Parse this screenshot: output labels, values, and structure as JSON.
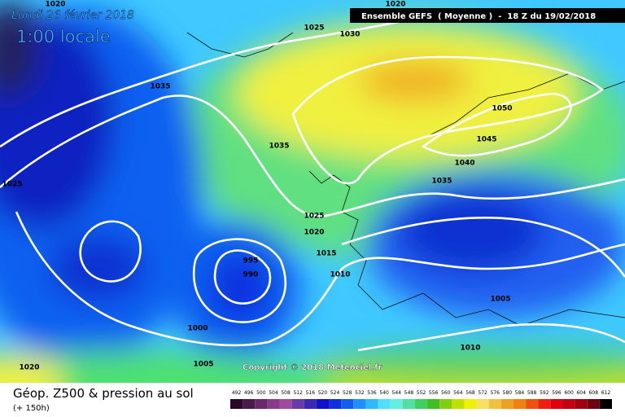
{
  "header": {
    "date": "Lundi 26 février 2018",
    "time": "1:00 locale",
    "run": "Ensemble GEFS  ( Moyenne )  -  18 Z du 19/02/2018"
  },
  "isobar_labels": [
    "1020",
    "1025",
    "1030",
    "1020",
    "1035",
    "1050",
    "1035",
    "1045",
    "1040",
    "1035",
    "1025",
    "1025",
    "1020",
    "1015",
    "995",
    "990",
    "1010",
    "1005",
    "1000",
    "1010",
    "1005",
    "1020"
  ],
  "copyright": "Copyright © 2018 Meteociel.fr",
  "footer": {
    "title": "Géop. Z500 & pression au sol",
    "lead": "(+ 150h)"
  },
  "legend": {
    "values": [
      492,
      496,
      500,
      504,
      508,
      512,
      516,
      520,
      524,
      528,
      532,
      536,
      540,
      544,
      548,
      552,
      556,
      560,
      564,
      568,
      572,
      576,
      580,
      584,
      588,
      592,
      596,
      600,
      604,
      608,
      612
    ],
    "colors": [
      "#2a0a2a",
      "#4a1a4a",
      "#6a2a6a",
      "#8a3a8a",
      "#a04aa0",
      "#6a3aa8",
      "#3a28b0",
      "#1010c8",
      "#1030e0",
      "#1060f0",
      "#2090ff",
      "#30b8ff",
      "#50e0ff",
      "#60f0e0",
      "#50e0a0",
      "#40d060",
      "#40c020",
      "#80d010",
      "#c0e000",
      "#f0f000",
      "#f8e060",
      "#f0c040",
      "#f0a020",
      "#f08010",
      "#f05010",
      "#f02010",
      "#e00010",
      "#c00010",
      "#a00010",
      "#700010",
      "#000000"
    ]
  }
}
